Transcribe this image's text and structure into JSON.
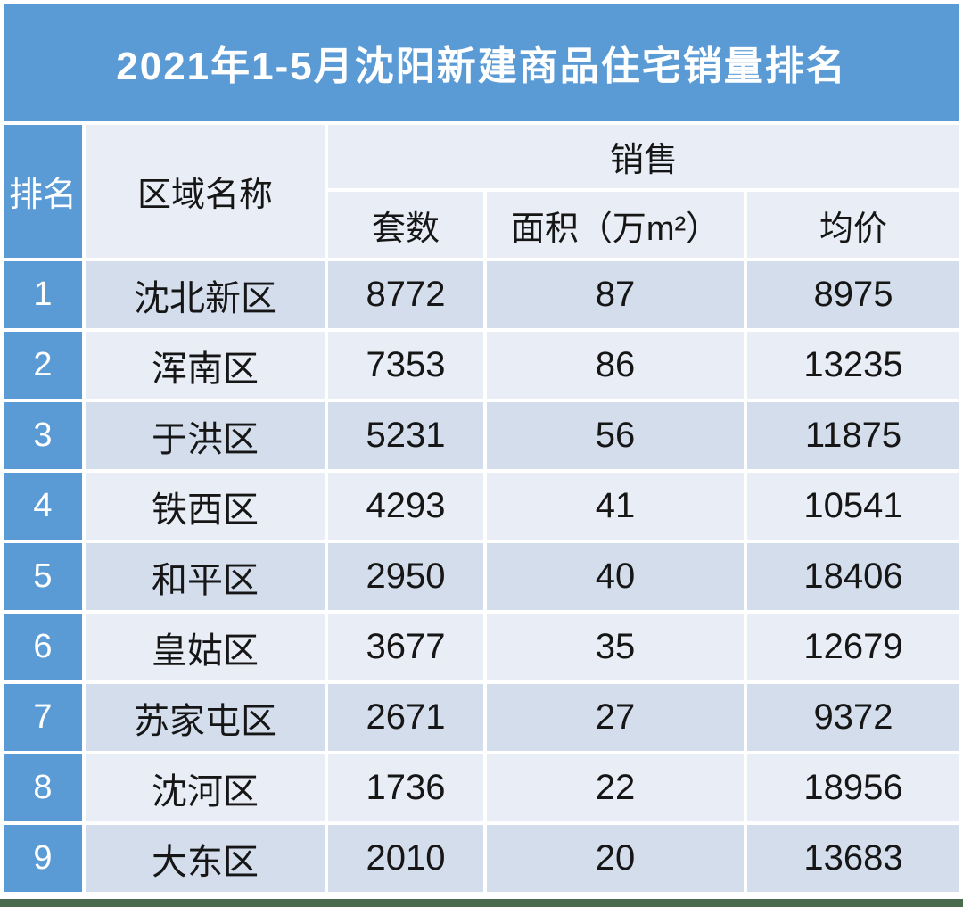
{
  "title": "2021年1-5月沈阳新建商品住宅销量排名",
  "table": {
    "headers": {
      "rank": "排名",
      "district": "区域名称",
      "sales_group": "销售",
      "units": "套数",
      "area": "面积（万m²）",
      "avg_price": "均价"
    },
    "rows": [
      {
        "rank": "1",
        "district": "沈北新区",
        "units": "8772",
        "area": "87",
        "avg_price": "8975"
      },
      {
        "rank": "2",
        "district": "浑南区",
        "units": "7353",
        "area": "86",
        "avg_price": "13235"
      },
      {
        "rank": "3",
        "district": "于洪区",
        "units": "5231",
        "area": "56",
        "avg_price": "11875"
      },
      {
        "rank": "4",
        "district": "铁西区",
        "units": "4293",
        "area": "41",
        "avg_price": "10541"
      },
      {
        "rank": "5",
        "district": "和平区",
        "units": "2950",
        "area": "40",
        "avg_price": "18406"
      },
      {
        "rank": "6",
        "district": "皇姑区",
        "units": "3677",
        "area": "35",
        "avg_price": "12679"
      },
      {
        "rank": "7",
        "district": "苏家屯区",
        "units": "2671",
        "area": "27",
        "avg_price": "9372"
      },
      {
        "rank": "8",
        "district": "沈河区",
        "units": "1736",
        "area": "22",
        "avg_price": "18956"
      },
      {
        "rank": "9",
        "district": "大东区",
        "units": "2010",
        "area": "20",
        "avg_price": "13683"
      }
    ]
  },
  "chart_data": {
    "type": "table",
    "title": "2021年1-5月沈阳新建商品住宅销量排名",
    "columns": [
      "排名",
      "区域名称",
      "套数",
      "面积（万m²）",
      "均价"
    ],
    "column_groups": [
      {
        "label": "销售",
        "columns": [
          "套数",
          "面积（万m²）",
          "均价"
        ]
      }
    ],
    "rows": [
      [
        1,
        "沈北新区",
        8772,
        87,
        8975
      ],
      [
        2,
        "浑南区",
        7353,
        86,
        13235
      ],
      [
        3,
        "于洪区",
        5231,
        56,
        11875
      ],
      [
        4,
        "铁西区",
        4293,
        41,
        10541
      ],
      [
        5,
        "和平区",
        2950,
        40,
        18406
      ],
      [
        6,
        "皇姑区",
        3677,
        35,
        12679
      ],
      [
        7,
        "苏家屯区",
        2671,
        27,
        9372
      ],
      [
        8,
        "沈河区",
        1736,
        22,
        18956
      ],
      [
        9,
        "大东区",
        2010,
        20,
        13683
      ]
    ]
  },
  "colors": {
    "accent_blue": "#5B9BD5",
    "row_band_dark": "#D3DDEC",
    "row_band_light": "#E9EDF6",
    "title_text": "#FFFFFF",
    "body_text": "#161616",
    "bottom_bar_green": "#4A6B4E",
    "page_background": "#FFFFFF"
  }
}
